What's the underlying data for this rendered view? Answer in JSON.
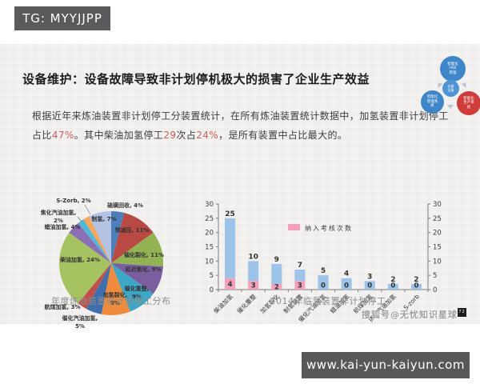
{
  "header": {
    "tg_label": "TG: MYYJJPP"
  },
  "footer": {
    "url": "www.kai-yun-kaiyun.com"
  },
  "watermark": {
    "text": "搜狐号@无忧知识星球",
    "badge": "72"
  },
  "slide": {
    "title": "设备维护：设备故障导致非计划停机极大的损害了企业生产效益",
    "body_segments": [
      {
        "text": "根据近年来炼油装置非计划停工分装置统计，在所有炼油装置统计数据中，加氢装置非计划停工占比",
        "highlight": false
      },
      {
        "text": "47%",
        "highlight": true
      },
      {
        "text": "。其中柴油加氢停工",
        "highlight": false
      },
      {
        "text": "29",
        "highlight": true
      },
      {
        "text": "次占",
        "highlight": false
      },
      {
        "text": "24%",
        "highlight": true
      },
      {
        "text": "，是所有装置中占比最大的。",
        "highlight": false
      }
    ],
    "captions": {
      "pie": "年度炼油装置非计划停工分布",
      "bar": "2014年临氢装置非计划停工"
    },
    "decor_circles": [
      {
        "lines": [
          "智能化",
          "HSE",
          "管理"
        ],
        "color": "#3e86c8"
      },
      {
        "lines": [
          "仪器",
          "设备"
        ],
        "color": "#4f95d4"
      },
      {
        "lines": [
          "智能化",
          "管理系",
          "统"
        ],
        "color": "#3e86c8"
      },
      {
        "lines": [
          "智能化",
          "生产系",
          "统"
        ],
        "color": "#cf3d3a"
      }
    ]
  },
  "chart_data": [
    {
      "type": "pie",
      "title": "年度炼油装置非计划停工分布",
      "slices": [
        {
          "label": "硫磺回收",
          "pct": 4,
          "color": "#4e7fba"
        },
        {
          "label": "常减压",
          "pct": 11,
          "color": "#b94a43"
        },
        {
          "label": "催化裂化",
          "pct": 11,
          "color": "#93b254"
        },
        {
          "label": "延迟焦化",
          "pct": 9,
          "color": "#7a5fa0"
        },
        {
          "label": "催化重整",
          "pct": 9,
          "color": "#3fa7c6"
        },
        {
          "label": "加氢裂化",
          "pct": 9,
          "color": "#ef8b3c"
        },
        {
          "label": "催化汽油加氢",
          "pct": 5,
          "color": "#3f6fad"
        },
        {
          "label": "航煤加氢",
          "pct": 3,
          "color": "#c1504c"
        },
        {
          "label": "柴油加氢",
          "pct": 24,
          "color": "#a6c361"
        },
        {
          "label": "蜡油加氢",
          "pct": 4,
          "color": "#8a6fb4"
        },
        {
          "label": "焦化汽油加氢",
          "pct": 2,
          "color": "#52b8d8"
        },
        {
          "label": "S-Zorb",
          "pct": 2,
          "color": "#f6a75a"
        },
        {
          "label": "制氢",
          "pct": 7,
          "color": "#b4c2e4"
        }
      ]
    },
    {
      "type": "bar",
      "stacked": true,
      "title": "2014年临氢装置非计划停工",
      "categories": [
        "柴油加氢",
        "催化重整",
        "加氢裂化",
        "制氢装置",
        "催化汽油加氢",
        "蜡油加氢",
        "航煤加氢",
        "焦化汽油加氢",
        "S-zorb"
      ],
      "totals": [
        25,
        10,
        9,
        7,
        5,
        4,
        3,
        2,
        2
      ],
      "assessed": {
        "name": "纳入考核次数",
        "values": [
          4,
          3,
          2,
          3,
          0,
          0,
          0,
          0,
          0
        ]
      },
      "ylim": [
        0,
        30
      ],
      "yticks": [
        0,
        5,
        10,
        15,
        20,
        25,
        30
      ],
      "legend": {
        "label": "纳入考核次数",
        "position": "top-center"
      },
      "colors": {
        "bar": "#9dc3e8",
        "assessed": "#f2a0be",
        "axis": "#7f7f7f"
      }
    }
  ]
}
